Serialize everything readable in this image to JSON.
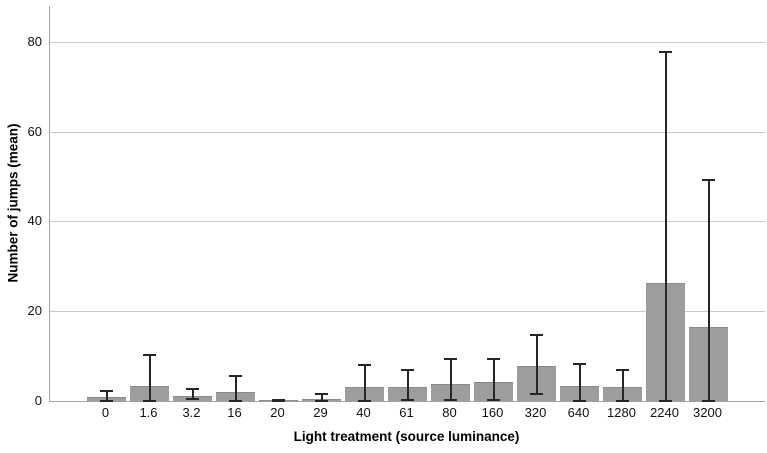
{
  "chart_data": {
    "type": "bar",
    "title": "",
    "xlabel": "Light treatment (source luminance)",
    "ylabel": "Number of jumps (mean)",
    "categories": [
      "0",
      "1.6",
      "3.2",
      "16",
      "20",
      "29",
      "40",
      "61",
      "80",
      "160",
      "320",
      "640",
      "1280",
      "2240",
      "3200"
    ],
    "series": [
      {
        "name": "Number of jumps (mean)",
        "values": [
          0.9,
          3.3,
          1.1,
          1.9,
          0.1,
          0.4,
          3.1,
          3.1,
          3.9,
          4.2,
          7.9,
          3.4,
          3.2,
          26.4,
          16.6
        ],
        "error_low": [
          0.1,
          0.0,
          0.4,
          0.0,
          0.0,
          0.05,
          0.1,
          0.2,
          0.2,
          0.2,
          1.5,
          0.0,
          0.0,
          0.0,
          0.0
        ],
        "error_high": [
          2.3,
          10.3,
          2.6,
          5.6,
          0.3,
          1.5,
          8.0,
          6.8,
          9.3,
          9.4,
          14.8,
          8.2,
          6.8,
          77.7,
          49.3
        ]
      }
    ],
    "yticks": [
      0,
      20,
      40,
      60,
      80
    ],
    "ylim": [
      0,
      88
    ],
    "grid": "horizontal-only",
    "legend": "none",
    "colors": {
      "bar_fill": "#9d9d9d",
      "bar_border": "#8b8b8b",
      "error_bar": "#262626",
      "gridline": "#cacaca",
      "axis_line": "#a3a3a3",
      "text": "#111111",
      "background": "#ffffff"
    }
  }
}
